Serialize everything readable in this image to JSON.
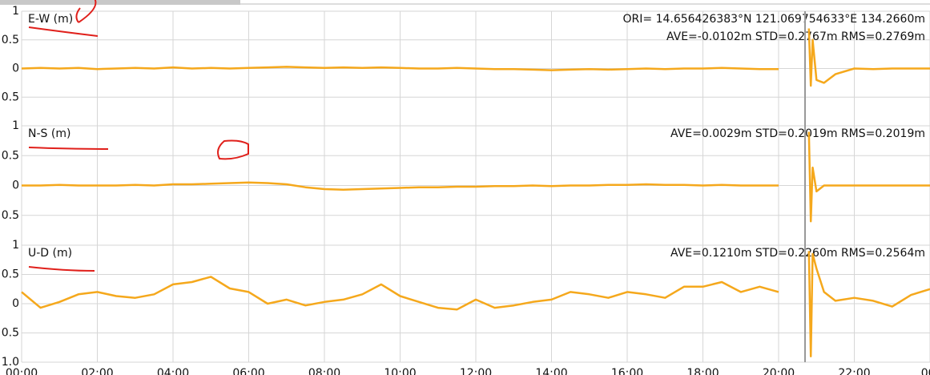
{
  "chart_data": [
    {
      "type": "line",
      "label": "E-W (m)",
      "annotations": [
        "ORI= 14.656426383°N  121.069754633°E 134.2660m",
        "AVE=-0.0102m STD=0.2767m RMS=0.2769m"
      ],
      "color": "#f5a81c",
      "ylim": [
        -1,
        1
      ],
      "yticks": [
        1,
        {
          "value": 0.5,
          "label": "0.5"
        },
        0,
        {
          "value": -0.5,
          "label": "0.5"
        }
      ],
      "x": [
        0,
        0.5,
        1,
        1.5,
        2,
        2.5,
        3,
        3.5,
        4,
        4.5,
        5,
        5.5,
        6,
        6.5,
        7,
        7.5,
        8,
        8.5,
        9,
        9.5,
        10,
        10.5,
        11,
        11.5,
        12,
        12.5,
        13,
        13.5,
        14,
        14.5,
        15,
        15.5,
        16,
        16.5,
        17,
        17.5,
        18,
        18.5,
        19,
        19.5,
        20,
        20.5,
        20.8,
        20.85,
        20.9,
        21,
        21.2,
        21.5,
        22,
        22.5,
        23,
        23.5,
        24
      ],
      "values": [
        0,
        0.01,
        0,
        0.01,
        -0.01,
        0,
        0.01,
        0,
        0.02,
        0,
        0.01,
        0,
        0.01,
        0.02,
        0.03,
        0.02,
        0.01,
        0.02,
        0.01,
        0.02,
        0.01,
        0,
        0,
        0.01,
        0,
        -0.01,
        -0.01,
        -0.02,
        -0.03,
        -0.02,
        -0.01,
        -0.02,
        -0.01,
        0,
        -0.01,
        0,
        0,
        0.01,
        0,
        -0.01,
        -0.01,
        null,
        0.7,
        -0.3,
        0.5,
        -0.2,
        -0.25,
        -0.1,
        0,
        -0.01,
        0,
        0,
        0
      ]
    },
    {
      "type": "line",
      "label": "N-S (m)",
      "annotations": [
        "AVE=0.0029m STD=0.2019m RMS=0.2019m"
      ],
      "color": "#f5a81c",
      "ylim": [
        -1,
        1
      ],
      "yticks": [
        1,
        {
          "value": 0.5,
          "label": "0.5"
        },
        0,
        {
          "value": -0.5,
          "label": "0.5"
        }
      ],
      "x": [
        0,
        0.5,
        1,
        1.5,
        2,
        2.5,
        3,
        3.5,
        4,
        4.5,
        5,
        5.5,
        6,
        6.5,
        7,
        7.5,
        8,
        8.5,
        9,
        9.5,
        10,
        10.5,
        11,
        11.5,
        12,
        12.5,
        13,
        13.5,
        14,
        14.5,
        15,
        15.5,
        16,
        16.5,
        17,
        17.5,
        18,
        18.5,
        19,
        19.5,
        20,
        20.5,
        20.8,
        20.85,
        20.9,
        21,
        21.2,
        21.5,
        22,
        22.5,
        23,
        23.5,
        24
      ],
      "values": [
        0,
        0,
        0.01,
        0,
        0,
        0,
        0.01,
        0,
        0.02,
        0.02,
        0.03,
        0.04,
        0.05,
        0.04,
        0.02,
        -0.03,
        -0.06,
        -0.07,
        -0.06,
        -0.05,
        -0.04,
        -0.03,
        -0.03,
        -0.02,
        -0.02,
        -0.01,
        -0.01,
        0,
        -0.01,
        0,
        0,
        0.01,
        0.01,
        0.02,
        0.01,
        0.01,
        0,
        0.01,
        0,
        0,
        0,
        null,
        0.9,
        -0.6,
        0.3,
        -0.1,
        0,
        0,
        0,
        0,
        0,
        0,
        0
      ]
    },
    {
      "type": "line",
      "label": "U-D (m)",
      "annotations": [
        "AVE=0.1210m STD=0.2260m RMS=0.2564m"
      ],
      "color": "#f5a81c",
      "ylim": [
        -1,
        1
      ],
      "yticks": [
        1,
        {
          "value": 0.5,
          "label": "0.5"
        },
        0,
        {
          "value": -0.5,
          "label": "0.5"
        },
        {
          "value": -1,
          "label": "1.0"
        }
      ],
      "xlim": [
        0,
        24
      ],
      "xticks": [
        {
          "value": 0,
          "label": "00:00"
        },
        {
          "value": 2,
          "label": "02:00"
        },
        {
          "value": 4,
          "label": "04:00"
        },
        {
          "value": 6,
          "label": "06:00"
        },
        {
          "value": 8,
          "label": "08:00"
        },
        {
          "value": 10,
          "label": "10:00"
        },
        {
          "value": 12,
          "label": "12:00"
        },
        {
          "value": 14,
          "label": "14:00"
        },
        {
          "value": 16,
          "label": "16:00"
        },
        {
          "value": 18,
          "label": "18:00"
        },
        {
          "value": 20,
          "label": "20:00"
        },
        {
          "value": 22,
          "label": "22:00"
        },
        {
          "value": 24,
          "label": "00:"
        }
      ],
      "x": [
        0,
        0.5,
        1,
        1.5,
        2,
        2.5,
        3,
        3.5,
        4,
        4.5,
        5,
        5.5,
        6,
        6.5,
        7,
        7.5,
        8,
        8.5,
        9,
        9.5,
        10,
        10.5,
        11,
        11.5,
        12,
        12.5,
        13,
        13.5,
        14,
        14.5,
        15,
        15.5,
        16,
        16.5,
        17,
        17.5,
        18,
        18.5,
        19,
        19.5,
        20,
        20.5,
        20.8,
        20.85,
        20.9,
        21,
        21.2,
        21.5,
        22,
        22.5,
        23,
        23.5,
        24
      ],
      "values": [
        0.2,
        -0.07,
        0.03,
        0.16,
        0.2,
        0.13,
        0.1,
        0.16,
        0.33,
        0.37,
        0.46,
        0.26,
        0.2,
        0,
        0.07,
        -0.03,
        0.03,
        0.07,
        0.16,
        0.33,
        0.13,
        0.03,
        -0.07,
        -0.1,
        0.07,
        -0.07,
        -0.03,
        0.03,
        0.07,
        0.2,
        0.16,
        0.1,
        0.2,
        0.16,
        0.1,
        0.29,
        0.29,
        0.37,
        0.2,
        0.29,
        0.2,
        null,
        0.9,
        -0.9,
        0.85,
        0.6,
        0.2,
        0.05,
        0.1,
        0.05,
        -0.05,
        0.15,
        0.25
      ]
    }
  ]
}
